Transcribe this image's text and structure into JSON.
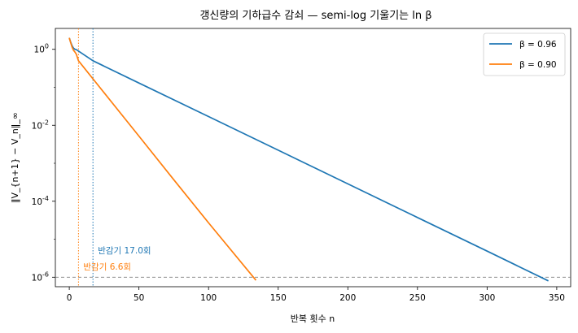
{
  "chart_data": {
    "type": "line",
    "title": "갱신량의 기하급수 감쇠 — semi-log 기울기는 ln β",
    "xlabel": "반복 횟수 n",
    "ylabel": "‖V_{n+1} − V_n‖_∞",
    "xlim": [
      -10,
      360
    ],
    "ylog": true,
    "ylim_exp": [
      -6.25,
      0.55
    ],
    "x_ticks": [
      0,
      50,
      100,
      150,
      200,
      250,
      300,
      350
    ],
    "y_ticks": [
      {
        "exp": 0,
        "label": "10^0"
      },
      {
        "exp": -2,
        "label": "10^-2"
      },
      {
        "exp": -4,
        "label": "10^-4"
      },
      {
        "exp": -6,
        "label": "10^-6"
      }
    ],
    "grid": false,
    "legend_position": "top-right",
    "series": [
      {
        "name": "β = 0.96",
        "color": "#1f77b4",
        "x": [
          0,
          1,
          2,
          3,
          4,
          5,
          17,
          50,
          100,
          150,
          200,
          250,
          300,
          344
        ],
        "y": [
          2.0,
          1.55,
          1.25,
          1.08,
          1.0,
          0.98,
          0.5,
          0.13,
          0.017,
          0.00221,
          0.000287,
          3.73e-05,
          4.85e-06,
          8e-07
        ]
      },
      {
        "name": "β = 0.90",
        "color": "#ff7f0e",
        "x": [
          0,
          1,
          2,
          3,
          4,
          5,
          6.6,
          25,
          50,
          75,
          100,
          134
        ],
        "y": [
          2.0,
          1.5,
          1.15,
          0.95,
          0.85,
          0.75,
          0.5,
          0.072,
          0.0052,
          0.00037,
          2.7e-05,
          8.3e-07
        ]
      }
    ],
    "threshold": {
      "y": 1e-06,
      "color": "#7f7f7f"
    },
    "half_lives": [
      {
        "x": 17.0,
        "label": "반감기 17.0회",
        "color": "#1f77b4"
      },
      {
        "x": 6.6,
        "label": "반감기 6.6회",
        "color": "#ff7f0e"
      }
    ]
  }
}
